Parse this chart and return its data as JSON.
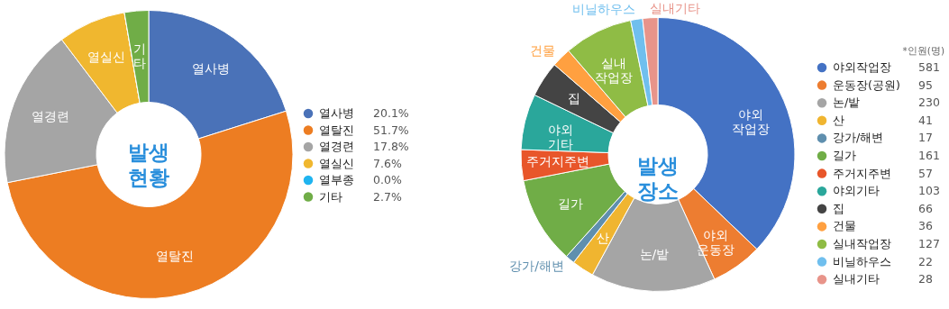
{
  "chart_data": [
    {
      "type": "donut",
      "title": "발생\n현황",
      "legend": "right",
      "categories": [
        "열사병",
        "열탈진",
        "열경련",
        "열실신",
        "열부종",
        "기타"
      ],
      "values": [
        20.1,
        51.7,
        17.8,
        7.6,
        0.0,
        2.7
      ],
      "colors": [
        "#4a72b8",
        "#ed7d22",
        "#a5a5a5",
        "#f0b72f",
        "#1fb4f0",
        "#70ad47"
      ],
      "value_labels": [
        "20.1%",
        "51.7%",
        "17.8%",
        "7.6%",
        "0.0%",
        "2.7%"
      ],
      "annotations": [
        {
          "text": "열사병",
          "x": "열사병"
        },
        {
          "text": "열탈진",
          "x": "열탈진"
        },
        {
          "text": "열경련",
          "x": "열경련"
        },
        {
          "text": "열실신",
          "x": "열실신"
        },
        {
          "text": "기\n타",
          "x": "기타"
        }
      ]
    },
    {
      "type": "donut",
      "title": "발생\n장소",
      "legend": "right",
      "legend_title": "*인원(명)",
      "categories": [
        "야외작업장",
        "운동장(공원)",
        "논/밭",
        "산",
        "강가/해변",
        "길가",
        "주거지주변",
        "야외기타",
        "집",
        "건물",
        "실내작업장",
        "비닐하우스",
        "실내기타"
      ],
      "values": [
        581,
        95,
        230,
        41,
        17,
        161,
        57,
        103,
        66,
        36,
        127,
        22,
        28
      ],
      "colors": [
        "#4472c4",
        "#ed7d31",
        "#a5a5a5",
        "#f0b530",
        "#5f8fae",
        "#70ad47",
        "#e8562a",
        "#2aa79b",
        "#444444",
        "#ffa040",
        "#8fbc45",
        "#70bfee",
        "#e8948a"
      ],
      "value_labels": [
        "581",
        "95",
        "230",
        "41",
        "17",
        "161",
        "57",
        "103",
        "66",
        "36",
        "127",
        "22",
        "28"
      ],
      "annotations": [
        {
          "text": "야외\n작업장",
          "x": "야외작업장"
        },
        {
          "text": "야외\n운동장",
          "x": "운동장(공원)"
        },
        {
          "text": "논/밭",
          "x": "논/밭"
        },
        {
          "text": "산",
          "x": "산"
        },
        {
          "text": "강가/해변",
          "x": "강가/해변"
        },
        {
          "text": "길가",
          "x": "길가"
        },
        {
          "text": "주거지주변",
          "x": "주거지주변"
        },
        {
          "text": "야외\n기타",
          "x": "야외기타"
        },
        {
          "text": "집",
          "x": "집"
        },
        {
          "text": "건물",
          "x": "건물"
        },
        {
          "text": "실내\n작업장",
          "x": "실내작업장"
        },
        {
          "text": "비닐하우스",
          "x": "비닐하우스"
        },
        {
          "text": "실내기타",
          "x": "실내기타"
        }
      ]
    }
  ]
}
